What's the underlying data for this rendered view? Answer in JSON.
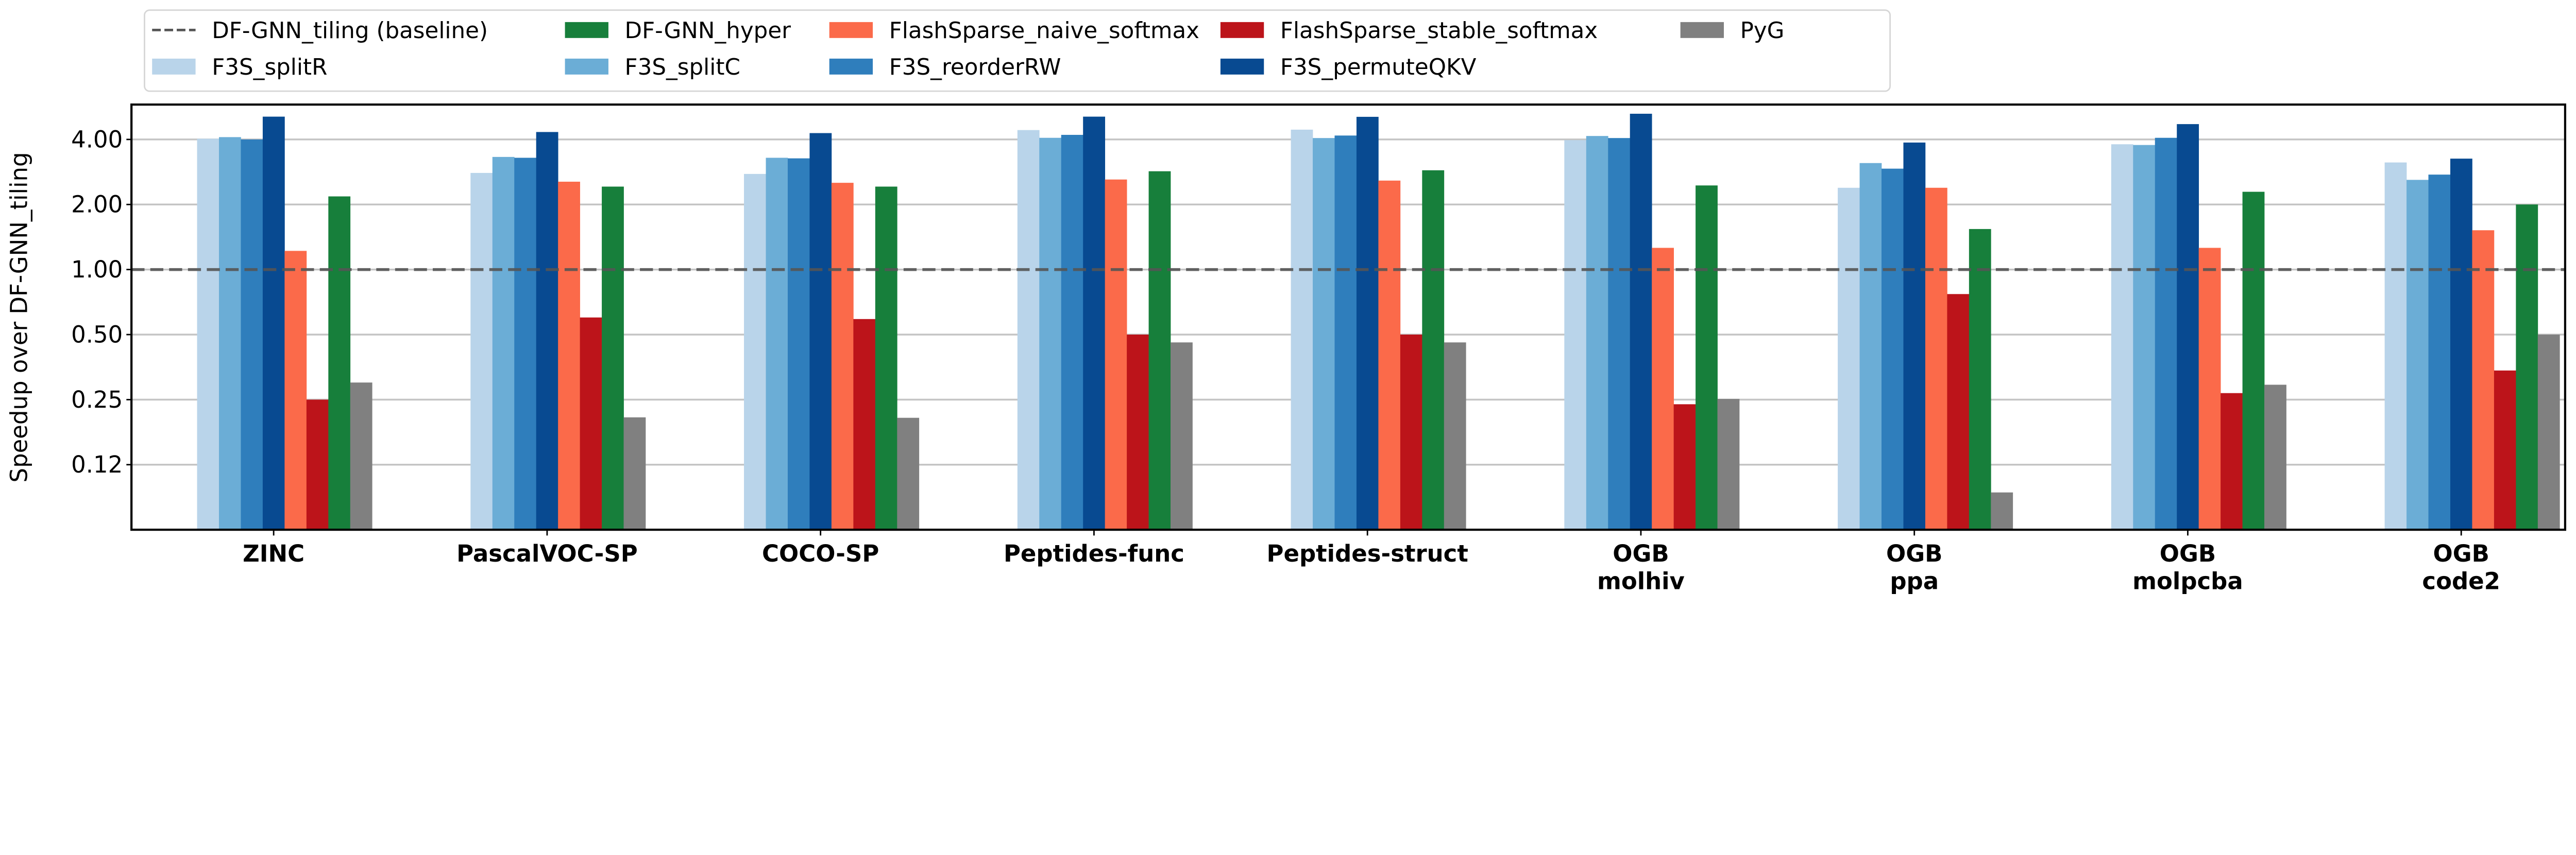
{
  "chart_data": {
    "type": "bar",
    "title": "",
    "xlabel": "",
    "ylabel": "Speedup over DF-GNN_tiling",
    "yscale": "log2",
    "ylim": [
      0.0625,
      5.8
    ],
    "yticks": [
      0.125,
      0.25,
      0.5,
      1.0,
      2.0,
      4.0
    ],
    "ytick_labels": [
      "0.12",
      "0.25",
      "0.50",
      "1.00",
      "2.00",
      "4.00"
    ],
    "grid": "y",
    "legend_placement": "top (above plot, 5 columns)",
    "categories": [
      [
        "ZINC"
      ],
      [
        "PascalVOC-SP"
      ],
      [
        "COCO-SP"
      ],
      [
        "Peptides-func"
      ],
      [
        "Peptides-struct"
      ],
      [
        "OGB",
        "molhiv"
      ],
      [
        "OGB",
        "ppa"
      ],
      [
        "OGB",
        "molpcba"
      ],
      [
        "OGB",
        "code2"
      ]
    ],
    "baseline": {
      "name": "DF-GNN_tiling (baseline)",
      "value": 1.0,
      "color": "#555555",
      "style": "dashed"
    },
    "series": [
      {
        "name": "F3S_splitR",
        "color": "#b9d4ea",
        "values": [
          4.03,
          2.8,
          2.77,
          4.42,
          4.44,
          3.97,
          2.39,
          3.8,
          3.13
        ]
      },
      {
        "name": "F3S_splitC",
        "color": "#6badd6",
        "values": [
          4.1,
          3.32,
          3.29,
          4.07,
          4.06,
          4.15,
          3.11,
          3.77,
          2.6
        ]
      },
      {
        "name": "F3S_reorderRW",
        "color": "#2f7ebc",
        "values": [
          4.0,
          3.29,
          3.27,
          4.2,
          4.17,
          4.06,
          2.93,
          4.07,
          2.75
        ]
      },
      {
        "name": "F3S_permuteQKV",
        "color": "#084a91",
        "values": [
          5.1,
          4.33,
          4.28,
          5.1,
          5.09,
          5.26,
          3.87,
          4.71,
          3.26
        ]
      },
      {
        "name": "FlashSparse_naive_softmax",
        "color": "#fb6a4a",
        "values": [
          1.22,
          2.55,
          2.52,
          2.61,
          2.58,
          1.26,
          2.39,
          1.26,
          1.52
        ]
      },
      {
        "name": "FlashSparse_stable_softmax",
        "color": "#bc141a",
        "values": [
          0.25,
          0.6,
          0.59,
          0.5,
          0.5,
          0.238,
          0.77,
          0.268,
          0.341
        ]
      },
      {
        "name": "DF-GNN_hyper",
        "color": "#177f3b",
        "values": [
          2.18,
          2.42,
          2.42,
          2.85,
          2.88,
          2.45,
          1.54,
          2.29,
          2.0
        ]
      },
      {
        "name": "PyG",
        "color": "#808080",
        "values": [
          0.3,
          0.207,
          0.206,
          0.46,
          0.46,
          0.252,
          0.093,
          0.293,
          0.5
        ]
      }
    ],
    "legend_order": [
      "DF-GNN_tiling (baseline)",
      "F3S_splitR",
      "DF-GNN_hyper",
      "F3S_splitC",
      "FlashSparse_naive_softmax",
      "F3S_reorderRW",
      "FlashSparse_stable_softmax",
      "F3S_permuteQKV",
      "PyG"
    ]
  }
}
